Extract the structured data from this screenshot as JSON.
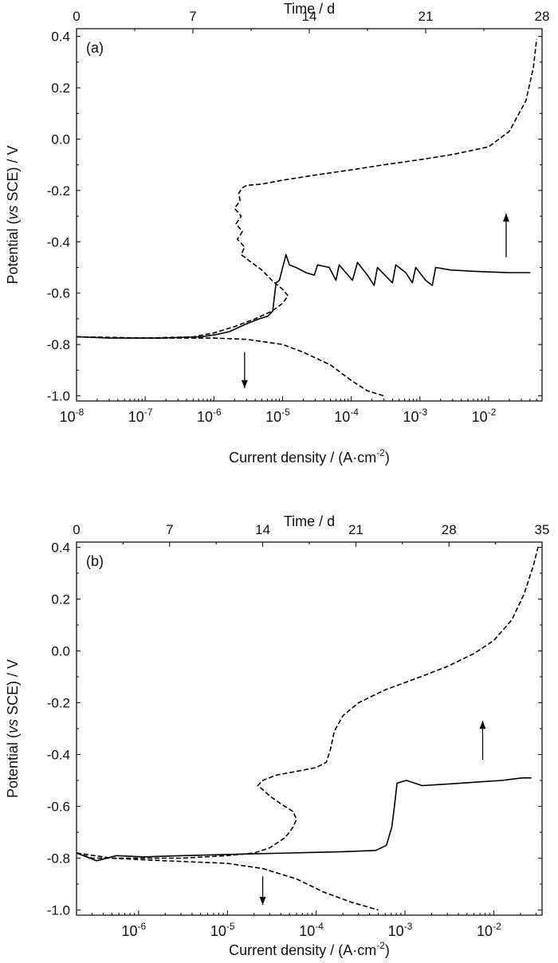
{
  "chart_data": [
    {
      "type": "line",
      "panel_label": "(a)",
      "xlabel": "Current density / (A·cm",
      "xlabel_sup": "-2",
      "xlabel_tail": ")",
      "ylabel": "Potential (",
      "ylabel_italic": "vs",
      "ylabel_tail": " SCE) / V",
      "top_xlabel": "Time / d",
      "x_scale": "log",
      "xlim": [
        1e-08,
        0.06
      ],
      "ylim": [
        -1.02,
        0.43
      ],
      "x_ticks": [
        {
          "value": 1e-08,
          "label": "10",
          "exp": "-8"
        },
        {
          "value": 1e-07,
          "label": "10",
          "exp": "-7"
        },
        {
          "value": 1e-06,
          "label": "10",
          "exp": "-6"
        },
        {
          "value": 1e-05,
          "label": "10",
          "exp": "-5"
        },
        {
          "value": 0.0001,
          "label": "10",
          "exp": "-4"
        },
        {
          "value": 0.001,
          "label": "10",
          "exp": "-3"
        },
        {
          "value": 0.01,
          "label": "10",
          "exp": "-2"
        }
      ],
      "y_ticks": [
        {
          "value": -1.0,
          "label": "-1.0"
        },
        {
          "value": -0.8,
          "label": "-0.8"
        },
        {
          "value": -0.6,
          "label": "-0.6"
        },
        {
          "value": -0.4,
          "label": "-0.4"
        },
        {
          "value": -0.2,
          "label": "-0.2"
        },
        {
          "value": 0.0,
          "label": "0.0"
        },
        {
          "value": 0.2,
          "label": "0.2"
        },
        {
          "value": 0.4,
          "label": "0.4"
        }
      ],
      "top_axis": {
        "range": [
          0,
          28
        ],
        "ticks": [
          {
            "value": 0,
            "label": "0"
          },
          {
            "value": 7,
            "label": "7"
          },
          {
            "value": 14,
            "label": "14"
          },
          {
            "value": 21,
            "label": "21"
          },
          {
            "value": 28,
            "label": "28"
          }
        ]
      },
      "series": [
        {
          "style": "dashed",
          "axis": "current",
          "points": [
            [
              1e-08,
              -0.77
            ],
            [
              1e-07,
              -0.775
            ],
            [
              5e-07,
              -0.77
            ],
            [
              1e-06,
              -0.755
            ],
            [
              2e-06,
              -0.73
            ],
            [
              4e-06,
              -0.7
            ],
            [
              7e-06,
              -0.67
            ],
            [
              1e-05,
              -0.64
            ],
            [
              1.2e-05,
              -0.61
            ],
            [
              1e-05,
              -0.585
            ],
            [
              7e-06,
              -0.55
            ],
            [
              5e-06,
              -0.51
            ],
            [
              3.5e-06,
              -0.48
            ],
            [
              2.5e-06,
              -0.45
            ],
            [
              2.8e-06,
              -0.42
            ],
            [
              2.2e-06,
              -0.39
            ],
            [
              2.6e-06,
              -0.36
            ],
            [
              2.1e-06,
              -0.33
            ],
            [
              2.5e-06,
              -0.3
            ],
            [
              2e-06,
              -0.27
            ],
            [
              2.4e-06,
              -0.24
            ],
            [
              2.3e-06,
              -0.21
            ],
            [
              2.6e-06,
              -0.19
            ],
            [
              3e-06,
              -0.18
            ],
            [
              5e-06,
              -0.175
            ],
            [
              1e-05,
              -0.16
            ],
            [
              3e-05,
              -0.14
            ],
            [
              0.0001,
              -0.12
            ],
            [
              0.0003,
              -0.1
            ],
            [
              0.001,
              -0.08
            ],
            [
              0.003,
              -0.06
            ],
            [
              0.01,
              -0.03
            ],
            [
              0.02,
              0.03
            ],
            [
              0.035,
              0.15
            ],
            [
              0.045,
              0.28
            ],
            [
              0.05,
              0.39
            ]
          ]
        },
        {
          "style": "dashed",
          "axis": "current",
          "points": [
            [
              1e-08,
              -0.77
            ],
            [
              1e-07,
              -0.775
            ],
            [
              1e-06,
              -0.775
            ],
            [
              3e-06,
              -0.78
            ],
            [
              1e-05,
              -0.8
            ],
            [
              2e-05,
              -0.83
            ],
            [
              5e-05,
              -0.88
            ],
            [
              0.0001,
              -0.94
            ],
            [
              0.00017,
              -0.98
            ],
            [
              0.0003,
              -1.0
            ]
          ]
        },
        {
          "style": "solid",
          "axis": "time",
          "points": [
            [
              0.0,
              -0.77
            ],
            [
              2.0,
              -0.775
            ],
            [
              5.0,
              -0.775
            ],
            [
              7.5,
              -0.77
            ],
            [
              8.5,
              -0.76
            ],
            [
              9.2,
              -0.75
            ],
            [
              10.2,
              -0.72
            ],
            [
              11.0,
              -0.7
            ],
            [
              11.5,
              -0.69
            ],
            [
              11.8,
              -0.67
            ],
            [
              12.0,
              -0.56
            ],
            [
              12.2,
              -0.55
            ],
            [
              12.4,
              -0.5
            ],
            [
              12.6,
              -0.45
            ],
            [
              12.8,
              -0.49
            ],
            [
              13.2,
              -0.5
            ],
            [
              13.8,
              -0.52
            ],
            [
              14.3,
              -0.53
            ],
            [
              14.5,
              -0.49
            ],
            [
              15.2,
              -0.5
            ],
            [
              15.6,
              -0.55
            ],
            [
              15.8,
              -0.49
            ],
            [
              16.6,
              -0.55
            ],
            [
              16.9,
              -0.48
            ],
            [
              17.5,
              -0.53
            ],
            [
              17.9,
              -0.57
            ],
            [
              18.1,
              -0.5
            ],
            [
              18.7,
              -0.54
            ],
            [
              19.0,
              -0.56
            ],
            [
              19.2,
              -0.49
            ],
            [
              19.8,
              -0.52
            ],
            [
              20.2,
              -0.56
            ],
            [
              20.4,
              -0.5
            ],
            [
              21.0,
              -0.55
            ],
            [
              21.4,
              -0.57
            ],
            [
              21.6,
              -0.5
            ],
            [
              22.5,
              -0.51
            ],
            [
              24.0,
              -0.515
            ],
            [
              26.0,
              -0.52
            ],
            [
              27.3,
              -0.52
            ]
          ]
        }
      ],
      "arrows": [
        {
          "x": 2.8e-06,
          "y_from": -0.83,
          "y_to": -0.97,
          "direction": "down"
        },
        {
          "x": 0.018,
          "y_from": -0.46,
          "y_to": -0.29,
          "direction": "up"
        }
      ]
    },
    {
      "type": "line",
      "panel_label": "(b)",
      "xlabel": "Current density / (A·cm",
      "xlabel_sup": "-2",
      "xlabel_tail": ")",
      "ylabel": "Potential (",
      "ylabel_italic": "vs",
      "ylabel_tail": " SCE) / V",
      "top_xlabel": "Time / d",
      "x_scale": "log",
      "xlim": [
        2e-07,
        0.035
      ],
      "ylim": [
        -1.02,
        0.42
      ],
      "x_ticks": [
        {
          "value": 1e-06,
          "label": "10",
          "exp": "-6"
        },
        {
          "value": 1e-05,
          "label": "10",
          "exp": "-5"
        },
        {
          "value": 0.0001,
          "label": "10",
          "exp": "-4"
        },
        {
          "value": 0.001,
          "label": "10",
          "exp": "-3"
        },
        {
          "value": 0.01,
          "label": "10",
          "exp": "-2"
        }
      ],
      "y_ticks": [
        {
          "value": -1.0,
          "label": "-1.0"
        },
        {
          "value": -0.8,
          "label": "-0.8"
        },
        {
          "value": -0.6,
          "label": "-0.6"
        },
        {
          "value": -0.4,
          "label": "-0.4"
        },
        {
          "value": -0.2,
          "label": "-0.2"
        },
        {
          "value": 0.0,
          "label": "0.0"
        },
        {
          "value": 0.2,
          "label": "0.2"
        },
        {
          "value": 0.4,
          "label": "0.4"
        }
      ],
      "top_axis": {
        "range": [
          0,
          35
        ],
        "ticks": [
          {
            "value": 0,
            "label": "0"
          },
          {
            "value": 7,
            "label": "7"
          },
          {
            "value": 14,
            "label": "14"
          },
          {
            "value": 21,
            "label": "21"
          },
          {
            "value": 28,
            "label": "28"
          },
          {
            "value": 35,
            "label": "35"
          }
        ]
      },
      "series": [
        {
          "style": "dashed",
          "axis": "current",
          "points": [
            [
              2e-07,
              -0.78
            ],
            [
              3e-07,
              -0.8
            ],
            [
              5e-07,
              -0.8
            ],
            [
              1e-06,
              -0.8
            ],
            [
              3e-06,
              -0.8
            ],
            [
              1e-05,
              -0.79
            ],
            [
              2e-05,
              -0.78
            ],
            [
              3e-05,
              -0.76
            ],
            [
              4.5e-05,
              -0.72
            ],
            [
              5.5e-05,
              -0.68
            ],
            [
              6e-05,
              -0.65
            ],
            [
              5.5e-05,
              -0.62
            ],
            [
              4e-05,
              -0.59
            ],
            [
              3e-05,
              -0.56
            ],
            [
              2.5e-05,
              -0.535
            ],
            [
              2.2e-05,
              -0.52
            ],
            [
              2.5e-05,
              -0.5
            ],
            [
              3.5e-05,
              -0.48
            ],
            [
              6e-05,
              -0.465
            ],
            [
              0.0001,
              -0.45
            ],
            [
              0.00013,
              -0.43
            ],
            [
              0.000145,
              -0.38
            ],
            [
              0.00016,
              -0.31
            ],
            [
              0.0002,
              -0.25
            ],
            [
              0.0003,
              -0.2
            ],
            [
              0.0006,
              -0.15
            ],
            [
              0.0015,
              -0.1
            ],
            [
              0.003,
              -0.06
            ],
            [
              0.006,
              -0.01
            ],
            [
              0.01,
              0.04
            ],
            [
              0.016,
              0.12
            ],
            [
              0.022,
              0.22
            ],
            [
              0.028,
              0.33
            ],
            [
              0.032,
              0.41
            ]
          ]
        },
        {
          "style": "dashed",
          "axis": "current",
          "points": [
            [
              2e-07,
              -0.78
            ],
            [
              5e-07,
              -0.8
            ],
            [
              2e-06,
              -0.81
            ],
            [
              1e-05,
              -0.82
            ],
            [
              2.5e-05,
              -0.84
            ],
            [
              6e-05,
              -0.88
            ],
            [
              0.00012,
              -0.93
            ],
            [
              0.00025,
              -0.97
            ],
            [
              0.0005,
              -1.0
            ]
          ]
        },
        {
          "style": "solid",
          "axis": "time",
          "points": [
            [
              0.0,
              -0.78
            ],
            [
              1.5,
              -0.81
            ],
            [
              3.0,
              -0.79
            ],
            [
              5.0,
              -0.795
            ],
            [
              8.0,
              -0.79
            ],
            [
              12.0,
              -0.785
            ],
            [
              16.0,
              -0.78
            ],
            [
              20.0,
              -0.775
            ],
            [
              22.5,
              -0.77
            ],
            [
              23.3,
              -0.75
            ],
            [
              23.7,
              -0.68
            ],
            [
              23.9,
              -0.6
            ],
            [
              24.1,
              -0.51
            ],
            [
              24.8,
              -0.5
            ],
            [
              26.0,
              -0.52
            ],
            [
              27.5,
              -0.515
            ],
            [
              29.0,
              -0.51
            ],
            [
              30.5,
              -0.505
            ],
            [
              32.0,
              -0.5
            ],
            [
              33.5,
              -0.49
            ],
            [
              34.2,
              -0.49
            ]
          ]
        }
      ],
      "arrows": [
        {
          "x": 2.5e-05,
          "y_from": -0.87,
          "y_to": -0.98,
          "direction": "down"
        },
        {
          "x": 0.0075,
          "y_from": -0.42,
          "y_to": -0.27,
          "direction": "up"
        }
      ]
    }
  ]
}
